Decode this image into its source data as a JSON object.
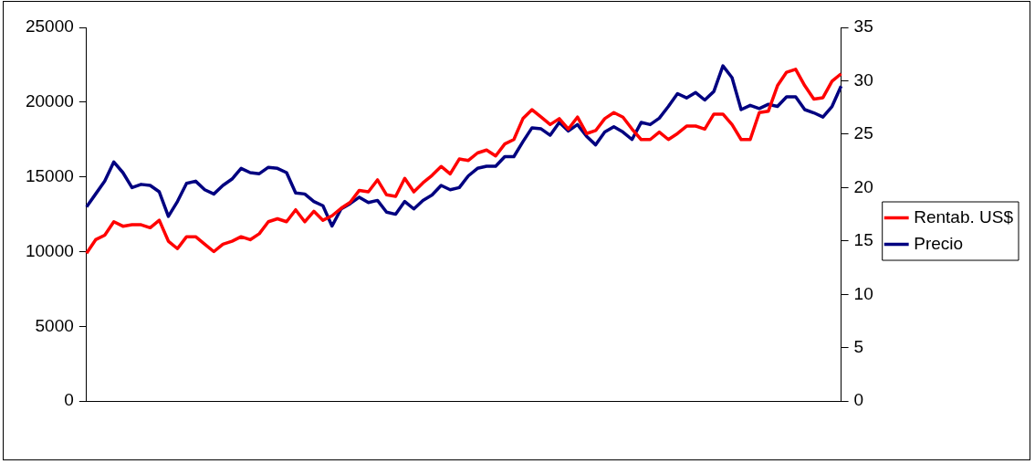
{
  "chart_data": {
    "type": "line",
    "categories": [
      null,
      null,
      null,
      null,
      null,
      null,
      null,
      null,
      null,
      null,
      null,
      null,
      null,
      null,
      null,
      null,
      null,
      null,
      null,
      null,
      null,
      null,
      null,
      null,
      null,
      null,
      null,
      null,
      null,
      null,
      null,
      null,
      null,
      null,
      null,
      null,
      null,
      null,
      null,
      null,
      null,
      null,
      null,
      null,
      null,
      null,
      null,
      null,
      null,
      null,
      null,
      null,
      null,
      null,
      null,
      null,
      null,
      null,
      null,
      null,
      null,
      null,
      null,
      null,
      null,
      null,
      null,
      null,
      null,
      null,
      null,
      null,
      null,
      null,
      null,
      null,
      null,
      null,
      null,
      null,
      null,
      null,
      null,
      null
    ],
    "ylim": [
      0,
      25000
    ],
    "yticks": [
      0,
      5000,
      10000,
      15000,
      20000,
      25000
    ],
    "y2lim": [
      0,
      35
    ],
    "y2ticks": [
      0,
      5,
      10,
      15,
      20,
      25,
      30,
      35
    ],
    "legend": "right",
    "series": [
      {
        "name": "Rentab. US$",
        "color": "#ff0000",
        "values": [
          9900,
          10800,
          11100,
          12000,
          11700,
          11800,
          11800,
          11600,
          12100,
          10700,
          10200,
          11000,
          11000,
          10500,
          10000,
          10500,
          10700,
          11000,
          10800,
          11200,
          12000,
          12200,
          12000,
          12800,
          12000,
          12700,
          12100,
          12400,
          12900,
          13300,
          14100,
          14000,
          14800,
          13800,
          13700,
          14900,
          14000,
          14600,
          15100,
          15700,
          15200,
          16200,
          16100,
          16600,
          16800,
          16400,
          17200,
          17500,
          18900,
          19500,
          19000,
          18500,
          18900,
          18200,
          19000,
          17900,
          18100,
          18900,
          19300,
          19000,
          18200,
          17500,
          17500,
          18000,
          17500,
          17900,
          18400,
          18400,
          18200,
          19200,
          19200,
          18500,
          17500,
          17500,
          19300,
          19400,
          21100,
          22000,
          22200,
          21100,
          20200,
          20300,
          21400,
          21900
        ]
      },
      {
        "name": "Precio",
        "color": "#000080",
        "axis": "y2",
        "values": [
          18.2,
          19.4,
          20.6,
          22.4,
          21.4,
          20.0,
          20.3,
          20.2,
          19.6,
          17.3,
          18.7,
          20.4,
          20.6,
          19.8,
          19.4,
          20.2,
          20.8,
          21.8,
          21.4,
          21.3,
          21.9,
          21.8,
          21.4,
          19.5,
          19.4,
          18.7,
          18.3,
          16.4,
          18.0,
          18.5,
          19.1,
          18.6,
          18.8,
          17.7,
          17.5,
          18.7,
          18.0,
          18.8,
          19.3,
          20.2,
          19.8,
          20.0,
          21.1,
          21.8,
          22.0,
          22.0,
          22.9,
          22.9,
          24.3,
          25.6,
          25.5,
          24.9,
          26.1,
          25.3,
          25.9,
          24.8,
          24.0,
          25.2,
          25.7,
          25.2,
          24.5,
          26.1,
          25.9,
          26.5,
          27.6,
          28.8,
          28.4,
          28.9,
          28.2,
          29.0,
          31.4,
          30.3,
          27.3,
          27.7,
          27.4,
          27.8,
          27.6,
          28.5,
          28.5,
          27.3,
          27.0,
          26.6,
          27.6,
          29.5
        ]
      }
    ]
  }
}
